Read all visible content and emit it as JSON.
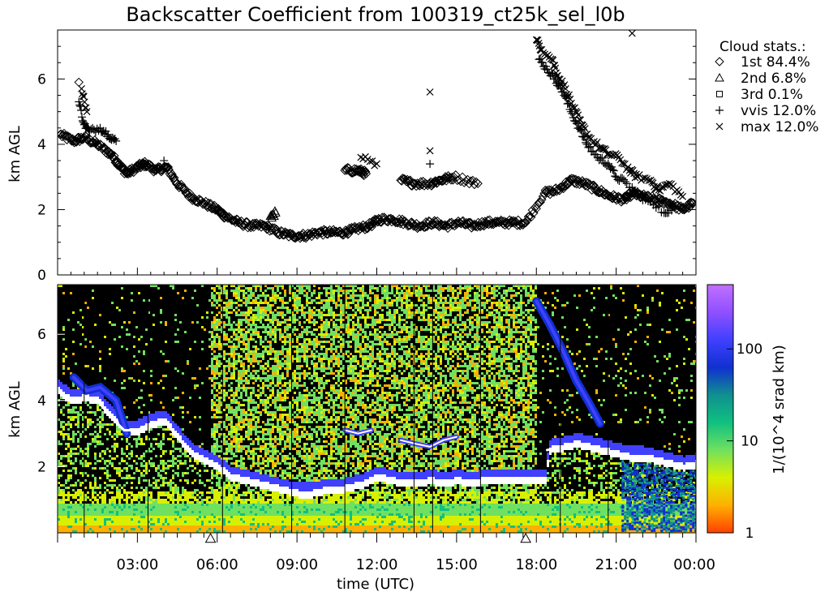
{
  "title": "Backscatter Coefficient from 100319_ct25k_sel_l0b",
  "x_axis": {
    "label": "time (UTC)",
    "ticks": [
      {
        "t": 3,
        "label": "03:00"
      },
      {
        "t": 6,
        "label": "06:00"
      },
      {
        "t": 9,
        "label": "09:00"
      },
      {
        "t": 12,
        "label": "12:00"
      },
      {
        "t": 15,
        "label": "15:00"
      },
      {
        "t": 18,
        "label": "18:00"
      },
      {
        "t": 21,
        "label": "21:00"
      },
      {
        "t": 24,
        "label": "00:00"
      }
    ]
  },
  "legend": {
    "title": "Cloud stats.:",
    "entries": [
      {
        "symbol": "diamond",
        "label": "1st 84.4%"
      },
      {
        "symbol": "triangle",
        "label": "2nd  6.8%"
      },
      {
        "symbol": "square",
        "label": "3rd  0.1%"
      },
      {
        "symbol": "plus",
        "label": "vvis 12.0%"
      },
      {
        "symbol": "cross",
        "label": "max 12.0%"
      }
    ]
  },
  "colorbar": {
    "label": "1/(10^4 srad km)",
    "scale": "log",
    "ticks": [
      {
        "value": 1,
        "label": "1"
      },
      {
        "value": 10,
        "label": "10"
      },
      {
        "value": 100,
        "label": "100"
      }
    ],
    "range": [
      1,
      500
    ],
    "colors": [
      "#ff4000",
      "#ffb000",
      "#d8f000",
      "#70e060",
      "#10c080",
      "#109090",
      "#1030d0",
      "#4040ff",
      "#9050ff",
      "#c070ff"
    ]
  },
  "markers": [
    {
      "t": 5.75,
      "symbol": "triangle"
    },
    {
      "t": 17.6,
      "symbol": "triangle"
    }
  ],
  "chart_data": [
    {
      "type": "scatter",
      "ylabel": "km AGL",
      "xlim": [
        0,
        24
      ],
      "ylim": [
        0,
        7.5
      ],
      "y_ticks": [
        0,
        2,
        4,
        6
      ],
      "series": [
        {
          "name": "1st",
          "symbol": "diamond",
          "points": [
            [
              0.1,
              4.3
            ],
            [
              0.6,
              4.1
            ],
            [
              1.0,
              4.2
            ],
            [
              1.5,
              4.0
            ],
            [
              2.0,
              3.7
            ],
            [
              2.3,
              3.4
            ],
            [
              2.6,
              3.1
            ],
            [
              3.0,
              3.3
            ],
            [
              3.3,
              3.4
            ],
            [
              3.7,
              3.2
            ],
            [
              4.1,
              3.3
            ],
            [
              4.5,
              2.8
            ],
            [
              5.0,
              2.4
            ],
            [
              5.5,
              2.2
            ],
            [
              6.0,
              2.0
            ],
            [
              6.3,
              1.8
            ],
            [
              6.8,
              1.6
            ],
            [
              7.3,
              1.5
            ],
            [
              7.8,
              1.5
            ],
            [
              8.3,
              1.3
            ],
            [
              8.8,
              1.2
            ],
            [
              9.3,
              1.2
            ],
            [
              9.8,
              1.3
            ],
            [
              10.3,
              1.3
            ],
            [
              10.8,
              1.3
            ],
            [
              11.2,
              1.4
            ],
            [
              11.7,
              1.5
            ],
            [
              12.1,
              1.7
            ],
            [
              12.6,
              1.7
            ],
            [
              13.1,
              1.6
            ],
            [
              13.6,
              1.5
            ],
            [
              14.1,
              1.6
            ],
            [
              14.6,
              1.5
            ],
            [
              15.1,
              1.6
            ],
            [
              15.6,
              1.5
            ],
            [
              16.1,
              1.6
            ],
            [
              16.6,
              1.6
            ],
            [
              17.1,
              1.6
            ],
            [
              17.6,
              1.6
            ],
            [
              18.3,
              2.5
            ],
            [
              18.8,
              2.6
            ],
            [
              19.3,
              2.9
            ],
            [
              19.8,
              2.8
            ],
            [
              20.3,
              2.6
            ],
            [
              20.8,
              2.4
            ],
            [
              21.3,
              2.3
            ],
            [
              21.6,
              2.5
            ],
            [
              22.0,
              2.4
            ],
            [
              22.5,
              2.3
            ],
            [
              23.0,
              2.2
            ],
            [
              23.5,
              2.0
            ],
            [
              23.9,
              2.2
            ],
            [
              10.8,
              3.2
            ],
            [
              11.3,
              3.2
            ],
            [
              11.6,
              3.1
            ],
            [
              12.9,
              2.9
            ],
            [
              13.4,
              2.8
            ],
            [
              14.0,
              2.8
            ],
            [
              14.4,
              2.9
            ],
            [
              14.9,
              3.0
            ],
            [
              15.8,
              2.8
            ],
            [
              0.8,
              5.9
            ]
          ]
        },
        {
          "name": "2nd",
          "symbol": "triangle",
          "points": [
            [
              8.2,
              1.9
            ],
            [
              8.0,
              1.8
            ]
          ]
        },
        {
          "name": "vvis",
          "symbol": "plus",
          "points": [
            [
              0.8,
              5.3
            ],
            [
              1.0,
              4.6
            ],
            [
              1.2,
              4.4
            ],
            [
              1.6,
              4.5
            ],
            [
              1.9,
              4.3
            ],
            [
              2.2,
              4.1
            ],
            [
              4.0,
              3.5
            ],
            [
              18.1,
              6.6
            ],
            [
              18.4,
              6.3
            ],
            [
              18.7,
              6.0
            ],
            [
              19.0,
              5.6
            ],
            [
              19.3,
              5.0
            ],
            [
              19.6,
              4.5
            ],
            [
              19.9,
              4.0
            ],
            [
              20.3,
              3.6
            ],
            [
              20.7,
              3.4
            ],
            [
              21.0,
              3.0
            ],
            [
              21.4,
              2.8
            ],
            [
              22.1,
              2.3
            ],
            [
              22.8,
              1.9
            ],
            [
              23.2,
              2.1
            ],
            [
              14.0,
              3.4
            ]
          ]
        },
        {
          "name": "max",
          "symbol": "cross",
          "points": [
            [
              18.0,
              7.2
            ],
            [
              18.2,
              6.9
            ],
            [
              18.6,
              6.6
            ],
            [
              18.8,
              6.1
            ],
            [
              19.1,
              5.7
            ],
            [
              19.4,
              5.1
            ],
            [
              19.7,
              4.6
            ],
            [
              20.0,
              4.2
            ],
            [
              20.4,
              3.9
            ],
            [
              20.7,
              3.7
            ],
            [
              21.1,
              3.6
            ],
            [
              21.5,
              3.2
            ],
            [
              21.8,
              3.0
            ],
            [
              22.3,
              2.9
            ],
            [
              22.6,
              2.6
            ],
            [
              23.0,
              2.8
            ],
            [
              23.5,
              2.4
            ],
            [
              11.4,
              3.6
            ],
            [
              12.0,
              3.4
            ],
            [
              14.0,
              3.8
            ],
            [
              21.6,
              7.4
            ],
            [
              14.0,
              5.6
            ],
            [
              0.9,
              5.7
            ],
            [
              1.1,
              5.0
            ]
          ]
        }
      ]
    },
    {
      "type": "heatmap",
      "ylabel": "km AGL",
      "xlim": [
        0,
        24
      ],
      "ylim": [
        0,
        7.5
      ],
      "y_ticks": [
        2,
        4,
        6
      ],
      "cloud_base_line": [
        [
          0,
          4.3
        ],
        [
          0.5,
          4.0
        ],
        [
          1.0,
          4.1
        ],
        [
          1.5,
          4.0
        ],
        [
          2.0,
          3.5
        ],
        [
          2.5,
          3.1
        ],
        [
          3.0,
          3.1
        ],
        [
          3.5,
          3.3
        ],
        [
          4.0,
          3.4
        ],
        [
          4.5,
          2.9
        ],
        [
          5.0,
          2.4
        ],
        [
          5.5,
          2.2
        ],
        [
          6.0,
          2.0
        ],
        [
          6.5,
          1.7
        ],
        [
          7.0,
          1.6
        ],
        [
          7.5,
          1.5
        ],
        [
          8.0,
          1.4
        ],
        [
          8.5,
          1.3
        ],
        [
          9.0,
          1.2
        ],
        [
          9.5,
          1.2
        ],
        [
          10.0,
          1.3
        ],
        [
          10.5,
          1.3
        ],
        [
          11.0,
          1.4
        ],
        [
          11.5,
          1.5
        ],
        [
          12.0,
          1.7
        ],
        [
          12.5,
          1.6
        ],
        [
          13.0,
          1.5
        ],
        [
          13.5,
          1.5
        ],
        [
          14.0,
          1.6
        ],
        [
          14.5,
          1.5
        ],
        [
          15.0,
          1.6
        ],
        [
          15.5,
          1.5
        ],
        [
          16.0,
          1.6
        ],
        [
          16.5,
          1.6
        ],
        [
          17.0,
          1.6
        ],
        [
          17.5,
          1.6
        ],
        [
          18.0,
          1.6
        ]
      ],
      "cloud_base_line_2": [
        [
          18.4,
          2.5
        ],
        [
          19.0,
          2.6
        ],
        [
          19.5,
          2.7
        ],
        [
          20.0,
          2.6
        ],
        [
          20.5,
          2.5
        ],
        [
          21.0,
          2.4
        ],
        [
          21.5,
          2.3
        ],
        [
          22.0,
          2.3
        ],
        [
          22.5,
          2.2
        ],
        [
          23.0,
          2.1
        ],
        [
          23.5,
          2.0
        ],
        [
          24.0,
          2.1
        ]
      ],
      "upper_cloud_segments": [
        [
          [
            10.8,
            3.1
          ],
          [
            11.3,
            3.0
          ],
          [
            11.8,
            3.1
          ]
        ],
        [
          [
            12.9,
            2.8
          ],
          [
            13.4,
            2.7
          ],
          [
            14.0,
            2.6
          ],
          [
            14.5,
            2.8
          ],
          [
            15.0,
            2.9
          ]
        ]
      ],
      "cirrus_streaks": [
        [
          [
            18.0,
            7.0
          ],
          [
            18.5,
            6.3
          ],
          [
            19.0,
            5.5
          ],
          [
            19.5,
            4.6
          ],
          [
            20.0,
            3.9
          ],
          [
            20.4,
            3.3
          ]
        ],
        [
          [
            0.6,
            4.7
          ],
          [
            1.1,
            4.3
          ],
          [
            1.6,
            4.4
          ],
          [
            2.2,
            4.0
          ],
          [
            2.6,
            3.0
          ]
        ]
      ]
    }
  ]
}
